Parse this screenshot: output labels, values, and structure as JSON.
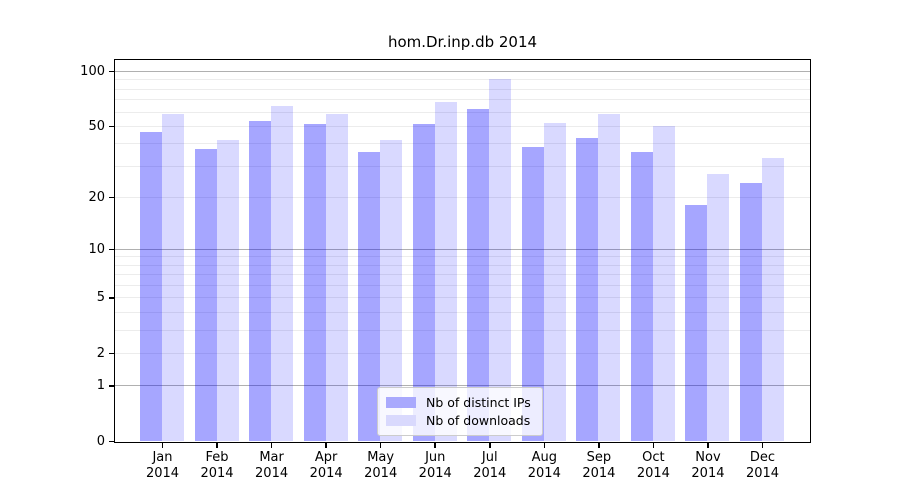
{
  "title": "hom.Dr.inp.db 2014",
  "chart_data": {
    "type": "bar",
    "title": "hom.Dr.inp.db 2014",
    "x_month_labels": [
      "Jan",
      "Feb",
      "Mar",
      "Apr",
      "May",
      "Jun",
      "Jul",
      "Aug",
      "Sep",
      "Oct",
      "Nov",
      "Dec"
    ],
    "x_year_label": "2014",
    "series": [
      {
        "name": "Nb of distinct IPs",
        "color": "rgba(0,0,255,0.35)",
        "swatch_color": "#a9a9fd",
        "values": [
          46,
          37,
          53,
          51,
          36,
          51,
          62,
          38,
          43,
          36,
          18,
          24
        ]
      },
      {
        "name": "Nb of downloads",
        "color": "rgba(0,0,255,0.15)",
        "swatch_color": "#d9d9fd",
        "values": [
          58,
          42,
          64,
          58,
          42,
          68,
          90,
          52,
          58,
          50,
          27,
          33
        ]
      }
    ],
    "yscale": "log1p",
    "ylabel": "",
    "xlabel": "",
    "ylim": [
      0,
      115
    ],
    "y_ticks": [
      0,
      1,
      2,
      5,
      10,
      20,
      50,
      100
    ],
    "grid_minor": [
      2,
      3,
      4,
      5,
      6,
      7,
      8,
      9,
      20,
      30,
      40,
      50,
      60,
      70,
      80,
      90
    ],
    "grid_major": [
      1,
      10,
      100
    ],
    "legend_position": "lower center",
    "grid_on": true,
    "colors": {
      "grid_minor": "#ececec",
      "grid_major": "#b0b0b0",
      "spine": "#000000",
      "text": "#000000"
    }
  }
}
